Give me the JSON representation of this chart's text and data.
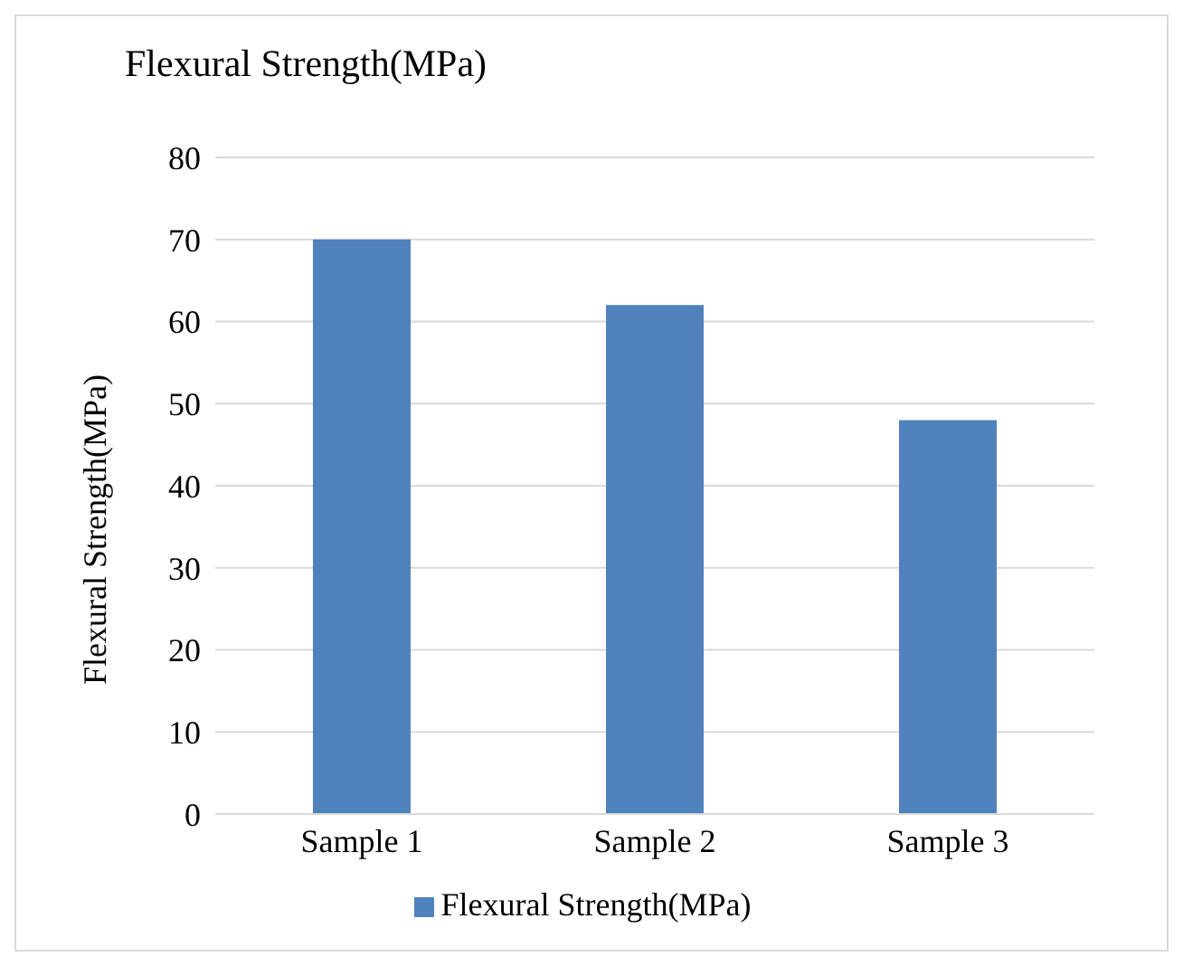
{
  "chart_data": {
    "type": "bar",
    "title": "Flexural Strength(MPa)",
    "ylabel": "Flexural Strength(MPa)",
    "categories": [
      "Sample 1",
      "Sample 2",
      "Sample 3"
    ],
    "series": [
      {
        "name": "Flexural Strength(MPa)",
        "color": "#4f81bd",
        "values": [
          70,
          62,
          48
        ]
      }
    ],
    "ylim": [
      0,
      80
    ],
    "yticks": [
      0,
      10,
      20,
      30,
      40,
      50,
      60,
      70,
      80
    ],
    "grid": "y",
    "legend": "bottom"
  }
}
